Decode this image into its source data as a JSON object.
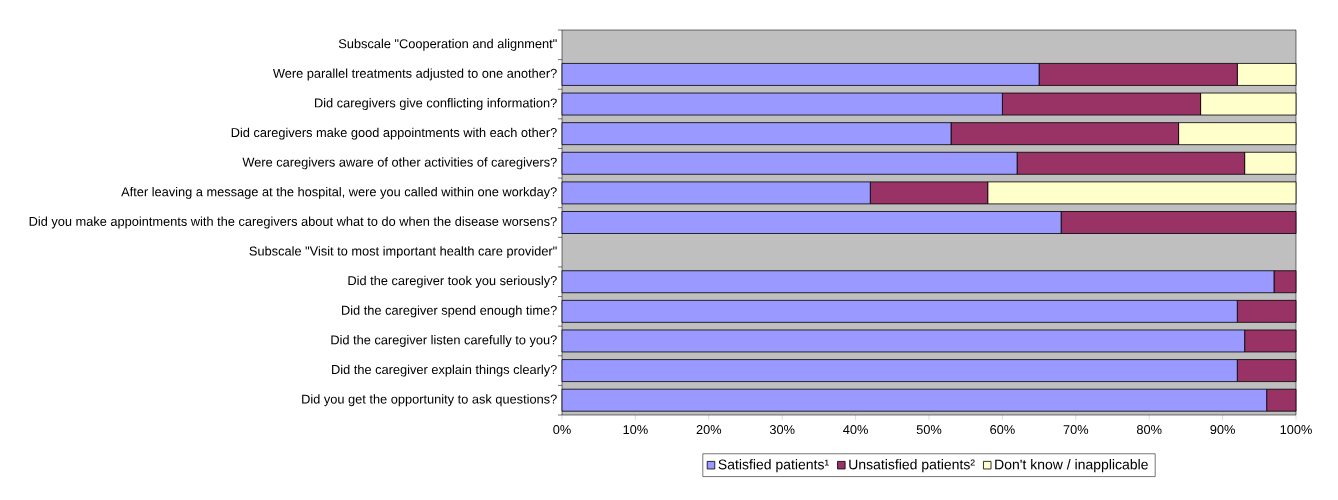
{
  "chart_data": {
    "type": "bar",
    "orientation": "horizontal",
    "stacked": true,
    "categories": [
      "Subscale \"Cooperation and alignment\"",
      "Were parallel treatments adjusted to one another?",
      "Did caregivers give conflicting information?",
      "Did caregivers make good appointments with each other?",
      "Were caregivers aware of other activities of caregivers?",
      "After leaving a message at the hospital, were you called within one workday?",
      "Did you make appointments with the caregivers about what to do when the disease worsens?",
      "Subscale \"Visit to most important health care provider\"",
      "Did the caregiver took you seriously?",
      "Did the caregiver spend enough time?",
      "Did the caregiver listen carefully to you?",
      "Did the caregiver explain things clearly?",
      "Did you get the opportunity to ask questions?"
    ],
    "series": [
      {
        "name": "Satisfied patients¹",
        "color": "#9999ff",
        "values": [
          null,
          65,
          60,
          53,
          62,
          42,
          68,
          null,
          97,
          92,
          93,
          92,
          96
        ]
      },
      {
        "name": "Unsatisfied patients²",
        "color": "#993366",
        "values": [
          null,
          27,
          27,
          31,
          31,
          16,
          32,
          null,
          3,
          8,
          7,
          8,
          4
        ]
      },
      {
        "name": "Don't know / inapplicable",
        "color": "#ffffcc",
        "values": [
          null,
          8,
          13,
          16,
          7,
          42,
          0,
          null,
          0,
          0,
          0,
          0,
          0
        ]
      }
    ],
    "xlim": [
      0,
      100
    ],
    "xticks": [
      {
        "value": 0,
        "label": "0%"
      },
      {
        "value": 10,
        "label": "10%"
      },
      {
        "value": 20,
        "label": "20%"
      },
      {
        "value": 30,
        "label": "30%"
      },
      {
        "value": 40,
        "label": "40%"
      },
      {
        "value": 50,
        "label": "50%"
      },
      {
        "value": 60,
        "label": "60%"
      },
      {
        "value": 70,
        "label": "70%"
      },
      {
        "value": 80,
        "label": "80%"
      },
      {
        "value": 90,
        "label": "90%"
      },
      {
        "value": 100,
        "label": "100%"
      }
    ],
    "grid": false,
    "legend": "bottom"
  }
}
